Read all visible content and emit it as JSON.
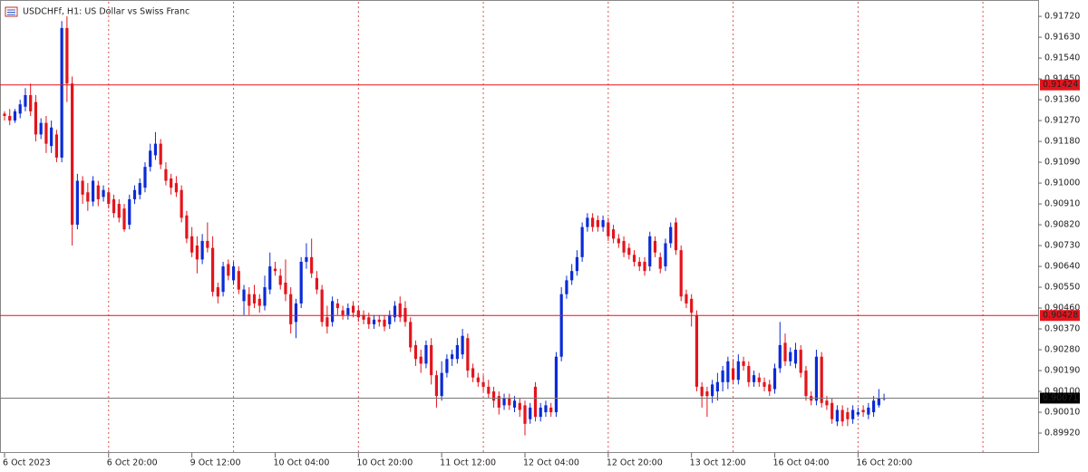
{
  "chart_data": {
    "type": "candlestick",
    "title": "USDCHFf, H1:  US Dollar vs Swiss Franc",
    "up_color": "#0a2bd6",
    "down_color": "#e4141c",
    "ylim": [
      0.89834,
      0.91783
    ],
    "yticks": [
      {
        "value": 0.9172,
        "label": "0.91720"
      },
      {
        "value": 0.9163,
        "label": "0.91630"
      },
      {
        "value": 0.9154,
        "label": "0.91540"
      },
      {
        "value": 0.9145,
        "label": "0.91450"
      },
      {
        "value": 0.9136,
        "label": "0.91360"
      },
      {
        "value": 0.9127,
        "label": "0.91270"
      },
      {
        "value": 0.9118,
        "label": "0.91180"
      },
      {
        "value": 0.9109,
        "label": "0.91090"
      },
      {
        "value": 0.91,
        "label": "0.91000"
      },
      {
        "value": 0.9091,
        "label": "0.90910"
      },
      {
        "value": 0.9082,
        "label": "0.90820"
      },
      {
        "value": 0.9073,
        "label": "0.90730"
      },
      {
        "value": 0.9064,
        "label": "0.90640"
      },
      {
        "value": 0.9055,
        "label": "0.90550"
      },
      {
        "value": 0.9046,
        "label": "0.90460"
      },
      {
        "value": 0.9037,
        "label": "0.90370"
      },
      {
        "value": 0.9028,
        "label": "0.90280"
      },
      {
        "value": 0.9019,
        "label": "0.90190"
      },
      {
        "value": 0.901,
        "label": "0.90100"
      },
      {
        "value": 0.9001,
        "label": "0.90010"
      },
      {
        "value": 0.8992,
        "label": "0.89920"
      }
    ],
    "hlines": [
      {
        "value": 0.91424,
        "label": "0.91424",
        "color": "#e4141c"
      },
      {
        "value": 0.90428,
        "label": "0.90428",
        "color": "#e4141c"
      },
      {
        "value": 0.90071,
        "label": "0.90071",
        "color": "#000000"
      }
    ],
    "grid": true,
    "categories": [
      "6 Oct 2023",
      null,
      null,
      null,
      null,
      null,
      null,
      null,
      null,
      null,
      null,
      null,
      null,
      null,
      null,
      null,
      null,
      null,
      null,
      null,
      "6 Oct 20:00",
      null,
      null,
      null,
      null,
      null,
      null,
      null,
      null,
      null,
      null,
      null,
      null,
      null,
      null,
      null,
      "9 Oct 12:00",
      null,
      null,
      null,
      null,
      null,
      null,
      null,
      null,
      null,
      null,
      null,
      null,
      null,
      null,
      null,
      "10 Oct 04:00",
      null,
      null,
      null,
      null,
      null,
      null,
      null,
      null,
      null,
      null,
      null,
      null,
      null,
      null,
      null,
      "10 Oct 20:00",
      null,
      null,
      null,
      null,
      null,
      null,
      null,
      null,
      null,
      null,
      null,
      null,
      null,
      null,
      null,
      "11 Oct 12:00",
      null,
      null,
      null,
      null,
      null,
      null,
      null,
      null,
      null,
      null,
      null,
      null,
      null,
      null,
      null,
      "12 Oct 04:00",
      null,
      null,
      null,
      null,
      null,
      null,
      null,
      null,
      null,
      null,
      null,
      null,
      null,
      null,
      null,
      "12 Oct 20:00",
      null,
      null,
      null,
      null,
      null,
      null,
      null,
      null,
      null,
      null,
      null,
      null,
      null,
      null,
      null,
      "13 Oct 12:00",
      null,
      null,
      null,
      null,
      null,
      null,
      null,
      null,
      null,
      null,
      null,
      null,
      null,
      null,
      null,
      "16 Oct 04:00",
      null,
      null,
      null,
      null,
      null,
      null,
      null,
      null,
      null,
      null,
      null,
      null,
      null,
      null,
      null,
      "16 Oct 20:00",
      null,
      null,
      null,
      null,
      null
    ],
    "ohlc": [
      [
        0.913,
        0.9131,
        0.9127,
        0.9129
      ],
      [
        0.9129,
        0.9132,
        0.9125,
        0.9127
      ],
      [
        0.9127,
        0.9132,
        0.9126,
        0.9131
      ],
      [
        0.913,
        0.9136,
        0.9128,
        0.9134
      ],
      [
        0.9133,
        0.9141,
        0.9131,
        0.9138
      ],
      [
        0.9138,
        0.9143,
        0.9129,
        0.9131
      ],
      [
        0.9135,
        0.9138,
        0.9118,
        0.9121
      ],
      [
        0.9121,
        0.9128,
        0.9119,
        0.9126
      ],
      [
        0.9126,
        0.9129,
        0.9113,
        0.9117
      ],
      [
        0.9116,
        0.9127,
        0.9113,
        0.9124
      ],
      [
        0.9121,
        0.9123,
        0.9109,
        0.9111
      ],
      [
        0.9111,
        0.917,
        0.9109,
        0.9167
      ],
      [
        0.9167,
        0.9172,
        0.9135,
        0.9143
      ],
      [
        0.9143,
        0.9146,
        0.9073,
        0.9082
      ],
      [
        0.9082,
        0.9104,
        0.908,
        0.9101
      ],
      [
        0.9101,
        0.9103,
        0.9091,
        0.9095
      ],
      [
        0.9096,
        0.91,
        0.9088,
        0.9092
      ],
      [
        0.9092,
        0.9103,
        0.909,
        0.9101
      ],
      [
        0.9099,
        0.9101,
        0.909,
        0.9093
      ],
      [
        0.9094,
        0.9099,
        0.9092,
        0.9097
      ],
      [
        0.9096,
        0.9098,
        0.9089,
        0.9091
      ],
      [
        0.9093,
        0.9095,
        0.9085,
        0.9087
      ],
      [
        0.9091,
        0.9093,
        0.9083,
        0.9085
      ],
      [
        0.9089,
        0.9091,
        0.9079,
        0.908
      ],
      [
        0.9082,
        0.9095,
        0.908,
        0.9093
      ],
      [
        0.9093,
        0.9099,
        0.9091,
        0.9097
      ],
      [
        0.9095,
        0.9102,
        0.9093,
        0.91
      ],
      [
        0.9098,
        0.9109,
        0.9096,
        0.9107
      ],
      [
        0.9107,
        0.9117,
        0.9105,
        0.9114
      ],
      [
        0.9112,
        0.9122,
        0.911,
        0.9117
      ],
      [
        0.9117,
        0.9119,
        0.9106,
        0.9108
      ],
      [
        0.9106,
        0.9109,
        0.9099,
        0.9101
      ],
      [
        0.9102,
        0.9104,
        0.9095,
        0.9098
      ],
      [
        0.91,
        0.9103,
        0.9094,
        0.9096
      ],
      [
        0.9097,
        0.9099,
        0.9083,
        0.9085
      ],
      [
        0.9086,
        0.9088,
        0.9074,
        0.9076
      ],
      [
        0.9077,
        0.9081,
        0.9068,
        0.907
      ],
      [
        0.9073,
        0.9077,
        0.9061,
        0.9067
      ],
      [
        0.9067,
        0.9078,
        0.9065,
        0.9075
      ],
      [
        0.9075,
        0.9083,
        0.907,
        0.9072
      ],
      [
        0.9072,
        0.9077,
        0.9051,
        0.9053
      ],
      [
        0.9055,
        0.9057,
        0.9048,
        0.9051
      ],
      [
        0.9053,
        0.9066,
        0.9051,
        0.9064
      ],
      [
        0.9065,
        0.9067,
        0.9058,
        0.906
      ],
      [
        0.9058,
        0.9066,
        0.9056,
        0.9064
      ],
      [
        0.9062,
        0.9064,
        0.9052,
        0.9054
      ],
      [
        0.9049,
        0.9056,
        0.9043,
        0.9054
      ],
      [
        0.9052,
        0.9055,
        0.9043,
        0.9047
      ],
      [
        0.9052,
        0.9056,
        0.9046,
        0.9048
      ],
      [
        0.905,
        0.9052,
        0.9044,
        0.9047
      ],
      [
        0.9047,
        0.906,
        0.9045,
        0.9055
      ],
      [
        0.9054,
        0.907,
        0.9052,
        0.9064
      ],
      [
        0.9063,
        0.9066,
        0.906,
        0.9062
      ],
      [
        0.906,
        0.9063,
        0.9054,
        0.9056
      ],
      [
        0.9057,
        0.9067,
        0.9049,
        0.9052
      ],
      [
        0.9052,
        0.9055,
        0.9035,
        0.9039
      ],
      [
        0.904,
        0.905,
        0.9033,
        0.9048
      ],
      [
        0.9048,
        0.9068,
        0.9046,
        0.9066
      ],
      [
        0.9066,
        0.9074,
        0.9063,
        0.9068
      ],
      [
        0.9068,
        0.9076,
        0.9059,
        0.9061
      ],
      [
        0.9059,
        0.9062,
        0.9052,
        0.9054
      ],
      [
        0.9054,
        0.9056,
        0.9038,
        0.904
      ],
      [
        0.9042,
        0.9047,
        0.9035,
        0.9038
      ],
      [
        0.904,
        0.9051,
        0.9038,
        0.9049
      ],
      [
        0.9048,
        0.905,
        0.9043,
        0.9046
      ],
      [
        0.9045,
        0.9047,
        0.9041,
        0.9043
      ],
      [
        0.9043,
        0.9048,
        0.9041,
        0.9046
      ],
      [
        0.9047,
        0.9049,
        0.9042,
        0.9044
      ],
      [
        0.9045,
        0.9047,
        0.904,
        0.9042
      ],
      [
        0.9043,
        0.9045,
        0.9039,
        0.9041
      ],
      [
        0.9042,
        0.9044,
        0.9037,
        0.9039
      ],
      [
        0.9039,
        0.9043,
        0.9037,
        0.9041
      ],
      [
        0.9041,
        0.9043,
        0.9038,
        0.904
      ],
      [
        0.9041,
        0.9043,
        0.9036,
        0.9038
      ],
      [
        0.9039,
        0.9045,
        0.9037,
        0.9043
      ],
      [
        0.9042,
        0.9049,
        0.904,
        0.9047
      ],
      [
        0.9048,
        0.9051,
        0.904,
        0.9042
      ],
      [
        0.9046,
        0.9049,
        0.9038,
        0.904
      ],
      [
        0.904,
        0.9042,
        0.9027,
        0.9029
      ],
      [
        0.903,
        0.9032,
        0.9021,
        0.9024
      ],
      [
        0.9025,
        0.9028,
        0.9018,
        0.9022
      ],
      [
        0.9022,
        0.9032,
        0.902,
        0.903
      ],
      [
        0.903,
        0.9033,
        0.9013,
        0.9017
      ],
      [
        0.9017,
        0.9019,
        0.9003,
        0.9008
      ],
      [
        0.9008,
        0.9023,
        0.9006,
        0.9018
      ],
      [
        0.9018,
        0.9026,
        0.9016,
        0.9024
      ],
      [
        0.9024,
        0.9028,
        0.9021,
        0.9026
      ],
      [
        0.9024,
        0.9033,
        0.9022,
        0.903
      ],
      [
        0.9026,
        0.9037,
        0.9024,
        0.9034
      ],
      [
        0.9033,
        0.9035,
        0.9016,
        0.9019
      ],
      [
        0.902,
        0.9022,
        0.9014,
        0.9016
      ],
      [
        0.9016,
        0.9018,
        0.9012,
        0.9014
      ],
      [
        0.9014,
        0.9017,
        0.901,
        0.9012
      ],
      [
        0.9012,
        0.9015,
        0.9007,
        0.9009
      ],
      [
        0.901,
        0.9012,
        0.9003,
        0.9006
      ],
      [
        0.9008,
        0.901,
        0.9,
        0.9003
      ],
      [
        0.9004,
        0.9009,
        0.9002,
        0.9007
      ],
      [
        0.9007,
        0.9009,
        0.9002,
        0.9004
      ],
      [
        0.9003,
        0.9008,
        0.9001,
        0.9006
      ],
      [
        0.9005,
        0.9007,
        0.8999,
        0.9002
      ],
      [
        0.9004,
        0.9006,
        0.8991,
        0.8996
      ],
      [
        0.8998,
        0.9005,
        0.8996,
        0.9003
      ],
      [
        0.9012,
        0.9014,
        0.8997,
        0.8999
      ],
      [
        0.8999,
        0.9005,
        0.8997,
        0.9003
      ],
      [
        0.9001,
        0.9006,
        0.8999,
        0.9004
      ],
      [
        0.9003,
        0.9005,
        0.8999,
        0.9001
      ],
      [
        0.9001,
        0.9027,
        0.8999,
        0.9025
      ],
      [
        0.9025,
        0.9055,
        0.9023,
        0.9052
      ],
      [
        0.9052,
        0.906,
        0.905,
        0.9058
      ],
      [
        0.9058,
        0.9065,
        0.9056,
        0.9062
      ],
      [
        0.9062,
        0.9071,
        0.906,
        0.9068
      ],
      [
        0.9068,
        0.9083,
        0.9066,
        0.9081
      ],
      [
        0.9081,
        0.9087,
        0.9079,
        0.9085
      ],
      [
        0.9085,
        0.9087,
        0.9079,
        0.9081
      ],
      [
        0.9084,
        0.9086,
        0.9079,
        0.9081
      ],
      [
        0.9081,
        0.9086,
        0.9079,
        0.9084
      ],
      [
        0.9083,
        0.9085,
        0.9075,
        0.9077
      ],
      [
        0.908,
        0.9082,
        0.9074,
        0.9076
      ],
      [
        0.9076,
        0.9078,
        0.9072,
        0.9074
      ],
      [
        0.9075,
        0.9077,
        0.9068,
        0.907
      ],
      [
        0.9072,
        0.9074,
        0.9067,
        0.9069
      ],
      [
        0.9069,
        0.9071,
        0.9064,
        0.9066
      ],
      [
        0.9066,
        0.9068,
        0.9062,
        0.9064
      ],
      [
        0.9066,
        0.9068,
        0.906,
        0.9062
      ],
      [
        0.9064,
        0.9079,
        0.9062,
        0.9077
      ],
      [
        0.9075,
        0.9077,
        0.9068,
        0.907
      ],
      [
        0.9068,
        0.907,
        0.9061,
        0.9063
      ],
      [
        0.9064,
        0.9076,
        0.9062,
        0.9074
      ],
      [
        0.9074,
        0.9083,
        0.9072,
        0.9081
      ],
      [
        0.9083,
        0.9085,
        0.9069,
        0.9071
      ],
      [
        0.9071,
        0.9073,
        0.9049,
        0.9051
      ],
      [
        0.9052,
        0.9054,
        0.9046,
        0.9048
      ],
      [
        0.905,
        0.9052,
        0.9038,
        0.9044
      ],
      [
        0.9043,
        0.9045,
        0.901,
        0.9012
      ],
      [
        0.9012,
        0.9014,
        0.9003,
        0.9008
      ],
      [
        0.901,
        0.9012,
        0.8999,
        0.9008
      ],
      [
        0.9008,
        0.9015,
        0.9005,
        0.9013
      ],
      [
        0.901,
        0.9018,
        0.9006,
        0.9014
      ],
      [
        0.9014,
        0.9021,
        0.901,
        0.9019
      ],
      [
        0.9014,
        0.9025,
        0.9011,
        0.9023
      ],
      [
        0.902,
        0.9024,
        0.9013,
        0.9015
      ],
      [
        0.9015,
        0.9026,
        0.9013,
        0.9023
      ],
      [
        0.9023,
        0.9025,
        0.9019,
        0.9021
      ],
      [
        0.9021,
        0.9023,
        0.9012,
        0.9014
      ],
      [
        0.9014,
        0.9019,
        0.9012,
        0.9017
      ],
      [
        0.9016,
        0.9018,
        0.9012,
        0.9014
      ],
      [
        0.9014,
        0.9016,
        0.901,
        0.9012
      ],
      [
        0.9013,
        0.9015,
        0.9008,
        0.901
      ],
      [
        0.9011,
        0.9022,
        0.9009,
        0.902
      ],
      [
        0.902,
        0.904,
        0.9018,
        0.903
      ],
      [
        0.9031,
        0.9035,
        0.9021,
        0.9023
      ],
      [
        0.9023,
        0.9029,
        0.9021,
        0.9027
      ],
      [
        0.9022,
        0.9031,
        0.902,
        0.9028
      ],
      [
        0.9028,
        0.903,
        0.9016,
        0.9018
      ],
      [
        0.9019,
        0.9021,
        0.9006,
        0.9008
      ],
      [
        0.9008,
        0.901,
        0.9004,
        0.9006
      ],
      [
        0.9006,
        0.9028,
        0.9004,
        0.9025
      ],
      [
        0.9025,
        0.9027,
        0.9003,
        0.9005
      ],
      [
        0.9006,
        0.9008,
        0.9002,
        0.9004
      ],
      [
        0.9005,
        0.9007,
        0.8996,
        0.8998
      ],
      [
        0.8997,
        0.9004,
        0.8995,
        0.9002
      ],
      [
        0.9002,
        0.9004,
        0.8995,
        0.8997
      ],
      [
        0.9001,
        0.9003,
        0.8995,
        0.8998
      ],
      [
        0.8998,
        0.9004,
        0.8996,
        0.9002
      ],
      [
        0.9,
        0.9003,
        0.8999,
        0.9001
      ],
      [
        0.9002,
        0.9004,
        0.8999,
        0.9001
      ],
      [
        0.9,
        0.9005,
        0.8998,
        0.9003
      ],
      [
        0.9001,
        0.9008,
        0.8999,
        0.9006
      ],
      [
        0.9004,
        0.9011,
        0.9003,
        0.9007
      ],
      [
        0.9007,
        0.9009,
        0.9006,
        0.90071
      ]
    ]
  }
}
